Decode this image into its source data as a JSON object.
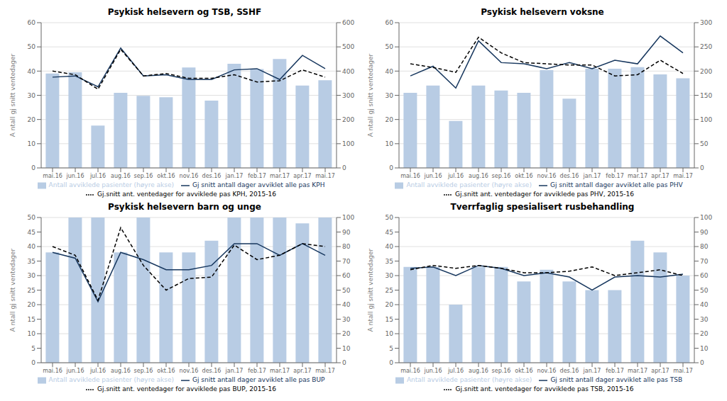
{
  "chart_data": [
    {
      "type": "bar",
      "title": "Psykisk helsevern og TSB, SSHF",
      "categories": [
        "mai.16",
        "jun.16",
        "jul.16",
        "aug.16",
        "sep.16",
        "okt.16",
        "nov.16",
        "des.16",
        "jan.17",
        "feb.17",
        "mar.17",
        "apr.17",
        "mai.17"
      ],
      "ylabel": "A ntall gj snitt ventedager",
      "ylim": [
        0,
        60
      ],
      "yticks": [
        0,
        10,
        20,
        30,
        40,
        50,
        60
      ],
      "y2lim": [
        0,
        600
      ],
      "y2ticks": [
        0,
        100,
        200,
        300,
        400,
        500,
        600
      ],
      "grid": true,
      "legend": "bottom",
      "series": [
        {
          "name": "Antall avviklede pasienter (høyre akse)",
          "type": "bar",
          "axis": "y2",
          "color": "#b8cce4",
          "values": [
            390,
            395,
            175,
            310,
            298,
            292,
            415,
            278,
            430,
            408,
            450,
            340,
            362
          ]
        },
        {
          "name": "Gj snitt antall dager avviklet alle pas KPH",
          "type": "line",
          "color": "#17375e",
          "line_style": "solid",
          "values": [
            37.5,
            38.0,
            33.5,
            49.5,
            38.0,
            38.5,
            36.5,
            36.5,
            40.5,
            41.0,
            36.5,
            46.5,
            41.0
          ]
        },
        {
          "name": "Gj.snitt ant. ventedager for avviklede pas KPH, 2015-16",
          "type": "line",
          "color": "#000000",
          "line_style": "dashed",
          "values": [
            40.0,
            38.5,
            32.5,
            49.0,
            38.0,
            39.0,
            37.0,
            37.0,
            38.5,
            35.5,
            36.0,
            40.5,
            37.5
          ]
        }
      ]
    },
    {
      "type": "bar",
      "title": "Psykisk helsevern voksne",
      "categories": [
        "mai.16",
        "jun.16",
        "jul.16",
        "aug.16",
        "sep.16",
        "okt.16",
        "nov.16",
        "des.16",
        "jan.17",
        "feb.17",
        "mar.17",
        "apr.17",
        "mai.17"
      ],
      "ylabel": "A ntall gj snitt ventedager",
      "ylim": [
        0,
        60
      ],
      "yticks": [
        0,
        10,
        20,
        30,
        40,
        50,
        60
      ],
      "y2lim": [
        0,
        300
      ],
      "y2ticks": [
        0,
        50,
        100,
        150,
        200,
        250,
        300
      ],
      "grid": true,
      "legend": "bottom",
      "series": [
        {
          "name": "Antall avviklede pasienter (høyre akse)",
          "type": "bar",
          "axis": "y2",
          "color": "#b8cce4",
          "values": [
            155,
            170,
            97,
            170,
            160,
            155,
            202,
            143,
            205,
            205,
            208,
            193,
            185
          ]
        },
        {
          "name": "Gj snitt antall dager avviklet alle pas PHV",
          "type": "line",
          "color": "#17375e",
          "line_style": "solid",
          "values": [
            38.0,
            42.0,
            33.0,
            52.5,
            43.5,
            43.0,
            41.0,
            43.5,
            41.0,
            44.5,
            43.0,
            54.5,
            47.5
          ]
        },
        {
          "name": "Gj.snitt ant. ventedager for avviklede pas PHV, 2015-16",
          "type": "line",
          "color": "#000000",
          "line_style": "dashed",
          "values": [
            43.0,
            41.5,
            39.5,
            54.0,
            47.5,
            43.5,
            43.0,
            42.5,
            42.5,
            38.0,
            38.5,
            44.5,
            39.0
          ]
        }
      ]
    },
    {
      "type": "bar",
      "title": "Psykisk helsevern barn og unge",
      "categories": [
        "mai.16",
        "jun.16",
        "jul.16",
        "aug.16",
        "sep.16",
        "okt.16",
        "nov.16",
        "des.16",
        "jan.17",
        "feb.17",
        "mar.17",
        "apr.17",
        "mai.17"
      ],
      "ylabel": "A ntall gj snitt ventedager",
      "ylim": [
        0,
        50
      ],
      "yticks": [
        0,
        5,
        10,
        15,
        20,
        25,
        30,
        35,
        40,
        45,
        50
      ],
      "y2lim": [
        0,
        100
      ],
      "y2ticks": [
        0,
        10,
        20,
        30,
        40,
        50,
        60,
        70,
        80,
        90,
        100
      ],
      "grid": true,
      "legend": "bottom",
      "series": [
        {
          "name": "Antall avviklede pasienter (høyre akse)",
          "type": "bar",
          "axis": "y2",
          "color": "#b8cce4",
          "values": [
            76,
            100,
            100,
            76,
            100,
            76,
            76,
            84,
            100,
            100,
            100,
            96,
            100
          ]
        },
        {
          "name": "Gj snitt antall dager avviklet alle pas BUP",
          "type": "line",
          "color": "#17375e",
          "line_style": "solid",
          "values": [
            38.0,
            36.0,
            21.0,
            38.0,
            35.5,
            32.0,
            32.0,
            33.5,
            41.0,
            41.0,
            37.0,
            41.0,
            37.0
          ]
        },
        {
          "name": "Gj.snitt ant. ventedager for avviklede pas BUP, 2015-16",
          "type": "line",
          "color": "#000000",
          "line_style": "dashed",
          "values": [
            40.0,
            37.0,
            21.5,
            46.5,
            33.5,
            25.0,
            29.0,
            29.5,
            40.5,
            35.5,
            37.0,
            41.0,
            40.0
          ]
        }
      ]
    },
    {
      "type": "bar",
      "title": "Tverrfaglig spesialisert rusbehandling",
      "categories": [
        "mai.16",
        "jun.16",
        "jul.16",
        "aug.16",
        "sep.16",
        "okt.16",
        "nov.16",
        "des.16",
        "jan.17",
        "feb.17",
        "mar.17",
        "apr.17",
        "mai.17"
      ],
      "ylabel": "A ntall gj snitt ventedager",
      "ylim": [
        0,
        50
      ],
      "yticks": [
        0,
        5,
        10,
        15,
        20,
        25,
        30,
        35,
        40,
        45,
        50
      ],
      "y2lim": [
        0,
        100
      ],
      "y2ticks": [
        0,
        10,
        20,
        30,
        40,
        50,
        60,
        70,
        80,
        90,
        100
      ],
      "grid": true,
      "legend": "bottom",
      "series": [
        {
          "name": "Antall avviklede pasienter (høyre akse)",
          "type": "bar",
          "axis": "y2",
          "color": "#b8cce4",
          "values": [
            66,
            66,
            40,
            66,
            66,
            56,
            64,
            56,
            50,
            50,
            84,
            76,
            60
          ]
        },
        {
          "name": "Gj snitt antall dager avviklet alle pas TSB",
          "type": "line",
          "color": "#17375e",
          "line_style": "solid",
          "values": [
            32.5,
            33.0,
            30.0,
            33.5,
            32.5,
            30.0,
            31.0,
            29.5,
            25.0,
            29.5,
            30.0,
            29.5,
            30.5
          ]
        },
        {
          "name": "Gj.snitt ant. ventedager for avviklede pas TSB, 2015-16",
          "type": "line",
          "color": "#000000",
          "line_style": "dashed",
          "values": [
            32.0,
            33.5,
            32.5,
            33.5,
            32.5,
            31.0,
            31.0,
            31.5,
            33.0,
            30.0,
            31.0,
            32.0,
            30.0
          ]
        }
      ]
    }
  ]
}
